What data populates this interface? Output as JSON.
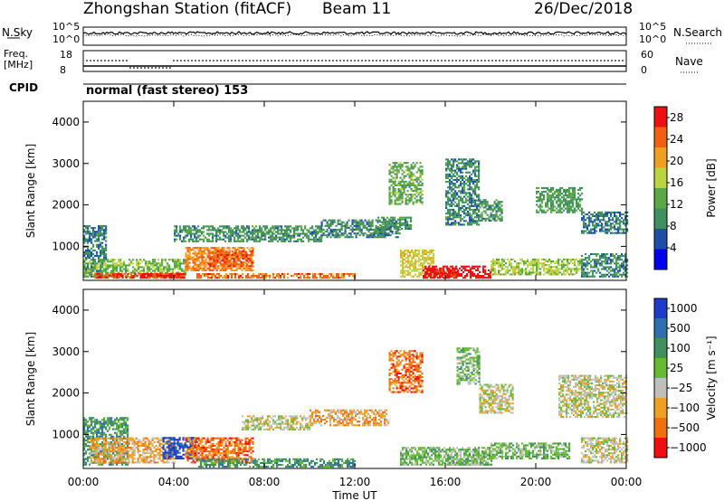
{
  "header": {
    "station": "Zhongshan Station (fitACF)",
    "beam": "Beam 11",
    "date": "26/Dec/2018"
  },
  "sky_panel": {
    "left_label": "N.Sky",
    "right_label": "N.Search",
    "left_ticks": [
      "10^5",
      "10^0"
    ],
    "right_ticks": [
      "10^5",
      "10^0"
    ]
  },
  "freq_panel": {
    "left_label_line1": "Freq.",
    "left_label_line2": "[MHz]",
    "left_ticks": [
      "18",
      "8"
    ],
    "right_ticks": [
      "60",
      "0"
    ],
    "right_label": "Nave"
  },
  "cpid": {
    "label": "CPID",
    "value": "normal (fast stereo) 153"
  },
  "colors": {
    "power": [
      "#0000ee",
      "#1e4fa8",
      "#3f8f5f",
      "#5aa845",
      "#bcd440",
      "#f0a020",
      "#f06010",
      "#ee1010"
    ],
    "velocity": [
      "#1e3cc8",
      "#2d6fb0",
      "#3f8f5f",
      "#66bb33",
      "#c0c0b8",
      "#f0a020",
      "#f07010",
      "#ee1010"
    ]
  },
  "chart_data": [
    {
      "type": "heatmap",
      "name": "power",
      "title": "",
      "xlabel": "",
      "ylabel": "Slant Range [km]",
      "xlim": [
        0,
        24
      ],
      "ylim": [
        180,
        4500
      ],
      "x_ticks": [
        "00:00",
        "04:00",
        "08:00",
        "12:00",
        "16:00",
        "20:00",
        "00:00"
      ],
      "y_ticks": [
        1000,
        2000,
        3000,
        4000
      ],
      "colorbar": {
        "label": "Power [dB]",
        "ticks": [
          "4",
          "8",
          "12",
          "16",
          "20",
          "24",
          "28"
        ],
        "range": [
          0,
          30
        ]
      },
      "regions": [
        {
          "t": [
            0,
            1.0
          ],
          "r": [
            250,
            1500
          ],
          "v": 8
        },
        {
          "t": [
            0,
            4.5
          ],
          "r": [
            250,
            700
          ],
          "v": 14
        },
        {
          "t": [
            0.5,
            4.5
          ],
          "r": [
            220,
            320
          ],
          "v": 26
        },
        {
          "t": [
            2.5,
            4.5
          ],
          "r": [
            220,
            320
          ],
          "v": 28
        },
        {
          "t": [
            4.5,
            7.5
          ],
          "r": [
            400,
            950
          ],
          "v": 22
        },
        {
          "t": [
            5.5,
            7.5
          ],
          "r": [
            500,
            900
          ],
          "v": 25
        },
        {
          "t": [
            5.0,
            12.0
          ],
          "r": [
            220,
            350
          ],
          "v": 24
        },
        {
          "t": [
            4.0,
            10.5
          ],
          "r": [
            1100,
            1500
          ],
          "v": 10
        },
        {
          "t": [
            10.5,
            14.0
          ],
          "r": [
            1200,
            1650
          ],
          "v": 9
        },
        {
          "t": [
            13.0,
            14.5
          ],
          "r": [
            1400,
            1700
          ],
          "v": 10
        },
        {
          "t": [
            13.5,
            15.0
          ],
          "r": [
            2000,
            3000
          ],
          "v": 13
        },
        {
          "t": [
            14.0,
            15.5
          ],
          "r": [
            250,
            900
          ],
          "v": 18
        },
        {
          "t": [
            15.0,
            18.0
          ],
          "r": [
            220,
            500
          ],
          "v": 30
        },
        {
          "t": [
            15.5,
            16.5
          ],
          "r": [
            250,
            450
          ],
          "v": 28
        },
        {
          "t": [
            16.0,
            17.5
          ],
          "r": [
            1500,
            3100
          ],
          "v": 9
        },
        {
          "t": [
            17.5,
            18.5
          ],
          "r": [
            1600,
            2100
          ],
          "v": 10
        },
        {
          "t": [
            18.0,
            22.0
          ],
          "r": [
            300,
            700
          ],
          "v": 16
        },
        {
          "t": [
            20.0,
            22.0
          ],
          "r": [
            1800,
            2400
          ],
          "v": 11
        },
        {
          "t": [
            22.0,
            24.0
          ],
          "r": [
            1300,
            1800
          ],
          "v": 8
        },
        {
          "t": [
            22.0,
            24.0
          ],
          "r": [
            250,
            800
          ],
          "v": 9
        }
      ]
    },
    {
      "type": "heatmap",
      "name": "velocity",
      "title": "",
      "xlabel": "Time UT",
      "ylabel": "Slant Range [km]",
      "xlim": [
        0,
        24
      ],
      "ylim": [
        180,
        4500
      ],
      "x_ticks": [
        "00:00",
        "04:00",
        "08:00",
        "12:00",
        "16:00",
        "20:00",
        "00:00"
      ],
      "y_ticks": [
        1000,
        2000,
        3000,
        4000
      ],
      "colorbar": {
        "label": "Velocity [m s⁻¹]",
        "ticks": [
          "1000",
          "500",
          "100",
          "25",
          "−25",
          "−100",
          "−500",
          "−1000"
        ]
      },
      "regions": [
        {
          "t": [
            0,
            2.0
          ],
          "r": [
            250,
            1400
          ],
          "v": 2
        },
        {
          "t": [
            0.3,
            4.0
          ],
          "r": [
            300,
            900
          ],
          "v": 5
        },
        {
          "t": [
            3.5,
            5.0
          ],
          "r": [
            400,
            900
          ],
          "v": 0
        },
        {
          "t": [
            4.5,
            7.5
          ],
          "r": [
            300,
            900
          ],
          "v": 6
        },
        {
          "t": [
            5.0,
            12.0
          ],
          "r": [
            200,
            400
          ],
          "v": 2
        },
        {
          "t": [
            7.0,
            10.0
          ],
          "r": [
            1100,
            1450
          ],
          "v": 4
        },
        {
          "t": [
            10.0,
            13.5
          ],
          "r": [
            1200,
            1600
          ],
          "v": 5
        },
        {
          "t": [
            13.5,
            15.0
          ],
          "r": [
            2000,
            3000
          ],
          "v": 6
        },
        {
          "t": [
            14.0,
            18.0
          ],
          "r": [
            250,
            700
          ],
          "v": 3
        },
        {
          "t": [
            16.0,
            18.0
          ],
          "r": [
            250,
            500
          ],
          "v": 3
        },
        {
          "t": [
            16.5,
            17.5
          ],
          "r": [
            2200,
            3100
          ],
          "v": 3
        },
        {
          "t": [
            17.5,
            19.0
          ],
          "r": [
            1500,
            2200
          ],
          "v": 4
        },
        {
          "t": [
            18.0,
            21.5
          ],
          "r": [
            400,
            800
          ],
          "v": 3
        },
        {
          "t": [
            21.0,
            24.0
          ],
          "r": [
            1400,
            2400
          ],
          "v": 4
        },
        {
          "t": [
            22.0,
            24.0
          ],
          "r": [
            300,
            900
          ],
          "v": 4
        }
      ]
    }
  ]
}
